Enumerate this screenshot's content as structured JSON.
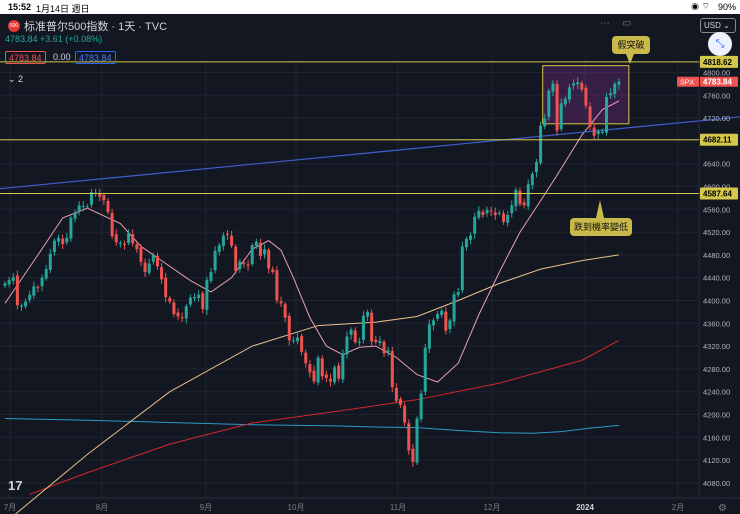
{
  "status": {
    "time": "15:52",
    "date": "1月14日 週日",
    "battery": "90%",
    "wifi_icon": "wifi-icon",
    "alarm_icon": "alarm-icon"
  },
  "header": {
    "logo_text": "500",
    "symbol_title": "标准普尔500指数 · 1天 · TVC",
    "ohlc_line": "4783.84 +3.61 (+0.08%)",
    "sell_price": "4783.84",
    "spread": "0.00",
    "buy_price": "4783.84",
    "indicator_count": "2",
    "currency": "USD"
  },
  "colors": {
    "up": "#26a69a",
    "down": "#ef5350",
    "level": "#d4c84a",
    "trend": "#3f5fcf",
    "ma20": "#e89fb0",
    "ma100": "#e6c08a",
    "ma200": "#2a9bc7",
    "ma_red": "#d2272f",
    "zone": "#7a2a88"
  },
  "annotations": {
    "false_break": "假突破",
    "drop_prob": "跌到機率變低"
  },
  "price_tags": {
    "last_symbol": "SPX",
    "last": "4783.84",
    "levels": [
      "4818.62",
      "4682.11",
      "4587.64"
    ]
  },
  "chart_data": {
    "type": "candlestick",
    "title": "标准普尔500指数 · 1天 · TVC",
    "x_labels": [
      "7月",
      "8月",
      "9月",
      "10月",
      "11月",
      "12月",
      "2024",
      "2月"
    ],
    "y_ticks": [
      "4800.00",
      "4760.00",
      "4720.00",
      "4680.00",
      "4640.00",
      "4600.00",
      "4560.00",
      "4520.00",
      "4480.00",
      "4440.00",
      "4400.00",
      "4360.00",
      "4320.00",
      "4280.00",
      "4240.00",
      "4200.00",
      "4160.00",
      "4120.00",
      "4080.00"
    ],
    "ylim": [
      4060,
      4830
    ],
    "horizontal_levels": [
      4818.62,
      4682.11,
      4587.64
    ],
    "closes": [
      4430,
      4436,
      4441,
      4392,
      4391,
      4398,
      4410,
      4425,
      4422,
      4440,
      4455,
      4482,
      4505,
      4510,
      4499,
      4510,
      4545,
      4554,
      4567,
      4566,
      4565,
      4590,
      4589,
      4582,
      4576,
      4555,
      4513,
      4502,
      4501,
      4498,
      4518,
      4500,
      4490,
      4468,
      4450,
      4465,
      4480,
      4460,
      4437,
      4406,
      4398,
      4376,
      4372,
      4370,
      4390,
      4405,
      4406,
      4410,
      4385,
      4436,
      4450,
      4487,
      4497,
      4514,
      4515,
      4496,
      4452,
      4468,
      4465,
      4461,
      4497,
      4503,
      4478,
      4490,
      4456,
      4450,
      4400,
      4395,
      4370,
      4330,
      4330,
      4335,
      4310,
      4290,
      4274,
      4258,
      4300,
      4267,
      4264,
      4258,
      4283,
      4263,
      4307,
      4337,
      4349,
      4327,
      4328,
      4373,
      4380,
      4328,
      4327,
      4329,
      4307,
      4313,
      4248,
      4224,
      4217,
      4186,
      4137,
      4117,
      4193,
      4237,
      4317,
      4358,
      4365,
      4376,
      4382,
      4347,
      4365,
      4411,
      4415,
      4495,
      4508,
      4514,
      4547,
      4557,
      4550,
      4559,
      4556,
      4550,
      4554,
      4538,
      4550,
      4567,
      4594,
      4569,
      4567,
      4604,
      4622,
      4643,
      4707,
      4719,
      4768,
      4781,
      4698,
      4746,
      4754,
      4774,
      4781,
      4783,
      4770,
      4742,
      4705,
      4689,
      4697,
      4696,
      4757,
      4764,
      4780,
      4784
    ],
    "lines": {
      "ma20": [
        [
          0,
          4395
        ],
        [
          8,
          4480
        ],
        [
          14,
          4545
        ],
        [
          20,
          4562
        ],
        [
          28,
          4535
        ],
        [
          33,
          4495
        ],
        [
          38,
          4470
        ],
        [
          45,
          4435
        ],
        [
          50,
          4415
        ],
        [
          55,
          4440
        ],
        [
          60,
          4490
        ],
        [
          64,
          4505
        ],
        [
          67,
          4488
        ],
        [
          70,
          4440
        ],
        [
          74,
          4370
        ],
        [
          78,
          4320
        ],
        [
          82,
          4305
        ],
        [
          86,
          4318
        ],
        [
          90,
          4320
        ],
        [
          95,
          4300
        ],
        [
          100,
          4270
        ],
        [
          105,
          4257
        ],
        [
          110,
          4290
        ],
        [
          115,
          4375
        ],
        [
          120,
          4450
        ],
        [
          125,
          4520
        ],
        [
          130,
          4575
        ],
        [
          134,
          4620
        ],
        [
          140,
          4690
        ],
        [
          145,
          4735
        ],
        [
          149,
          4750
        ]
      ],
      "ma100": [
        [
          0,
          4010
        ],
        [
          20,
          4130
        ],
        [
          40,
          4240
        ],
        [
          60,
          4320
        ],
        [
          76,
          4356
        ],
        [
          90,
          4362
        ],
        [
          100,
          4372
        ],
        [
          110,
          4400
        ],
        [
          120,
          4430
        ],
        [
          130,
          4455
        ],
        [
          140,
          4470
        ],
        [
          149,
          4480
        ]
      ],
      "ma200": [
        [
          0,
          4193
        ],
        [
          20,
          4190
        ],
        [
          40,
          4186
        ],
        [
          60,
          4182
        ],
        [
          80,
          4180
        ],
        [
          90,
          4178
        ],
        [
          100,
          4177
        ],
        [
          110,
          4172
        ],
        [
          120,
          4168
        ],
        [
          128,
          4167
        ],
        [
          135,
          4170
        ],
        [
          142,
          4176
        ],
        [
          149,
          4181
        ]
      ],
      "ma_red": [
        [
          6,
          4060
        ],
        [
          20,
          4098
        ],
        [
          40,
          4148
        ],
        [
          60,
          4185
        ],
        [
          80,
          4205
        ],
        [
          100,
          4226
        ],
        [
          120,
          4255
        ],
        [
          140,
          4295
        ],
        [
          149,
          4330
        ]
      ],
      "trendline": [
        [
          -20,
          4583
        ],
        [
          184,
          4726
        ]
      ]
    },
    "zone": {
      "x0": 131,
      "x1": 149,
      "y0": 4710,
      "y1": 4812
    },
    "grid": true
  }
}
